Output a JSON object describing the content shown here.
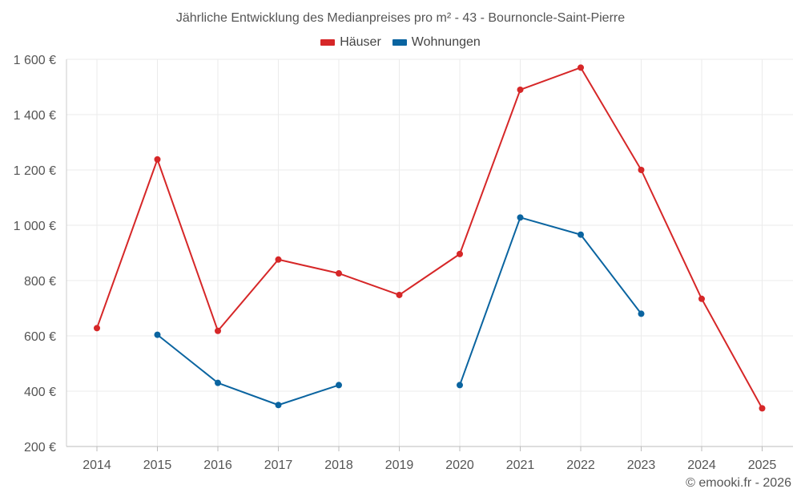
{
  "chart_data": {
    "type": "line",
    "title": "Jährliche Entwicklung des Medianpreises pro m² - 43 - Bournoncle-Saint-Pierre",
    "categories": [
      "2014",
      "2015",
      "2016",
      "2017",
      "2018",
      "2019",
      "2020",
      "2021",
      "2022",
      "2023",
      "2024",
      "2025"
    ],
    "ylim": [
      200,
      1600
    ],
    "yticks": [
      200,
      400,
      600,
      800,
      1000,
      1200,
      1400,
      1600
    ],
    "ytick_labels": [
      "200 €",
      "400 €",
      "600 €",
      "800 €",
      "1 000 €",
      "1 200 €",
      "1 400 €",
      "1 600 €"
    ],
    "grid": true,
    "legend_position": "top-center",
    "series": [
      {
        "name": "Häuser",
        "color": "#d62728",
        "values": [
          628,
          1238,
          618,
          876,
          826,
          748,
          896,
          1490,
          1570,
          1200,
          734,
          338
        ]
      },
      {
        "name": "Wohnungen",
        "color": "#0a64a0",
        "values": [
          null,
          604,
          430,
          350,
          422,
          null,
          422,
          1028,
          966,
          680,
          null,
          null
        ]
      }
    ]
  },
  "credit": "© emooki.fr - 2026"
}
